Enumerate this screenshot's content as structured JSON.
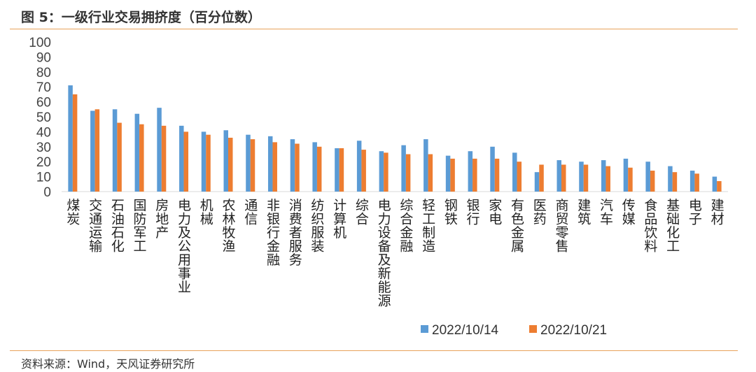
{
  "figure_title": "图 5：一级行业交易拥挤度（百分位数）",
  "source": "资料来源：Wind，天风证券研究所",
  "colors": {
    "series1": "#5b9bd5",
    "series2": "#ed7d31",
    "rule": "#e8a25a"
  },
  "chart_data": {
    "type": "bar",
    "title": "",
    "xlabel": "",
    "ylabel": "",
    "ylim": [
      0,
      100
    ],
    "yticks": [
      0,
      10,
      20,
      30,
      40,
      50,
      60,
      70,
      80,
      90,
      100
    ],
    "grid": false,
    "legend_position": "bottom",
    "categories": [
      "煤炭",
      "交通运输",
      "石油石化",
      "国防军工",
      "房地产",
      "电力及公用事业",
      "机械",
      "农林牧渔",
      "通信",
      "非银行金融",
      "消费者服务",
      "纺织服装",
      "计算机",
      "综合",
      "电力设备及新能源",
      "综合金融",
      "轻工制造",
      "钢铁",
      "银行",
      "家电",
      "有色金属",
      "医药",
      "商贸零售",
      "建筑",
      "汽车",
      "传媒",
      "食品饮料",
      "基础化工",
      "电子",
      "建材"
    ],
    "series": [
      {
        "name": "2022/10/14",
        "values": [
          71,
          54,
          55,
          52,
          56,
          44,
          40,
          41,
          38,
          37,
          35,
          33,
          29,
          34,
          27,
          31,
          35,
          24,
          27,
          30,
          26,
          13,
          21,
          20,
          21,
          22,
          20,
          17,
          14,
          10
        ]
      },
      {
        "name": "2022/10/21",
        "values": [
          65,
          55,
          46,
          45,
          44,
          40,
          38,
          36,
          35,
          33,
          32,
          30,
          29,
          28,
          26,
          25,
          25,
          22,
          22,
          22,
          20,
          18,
          18,
          18,
          17,
          16,
          14,
          13,
          12,
          7
        ]
      }
    ]
  }
}
